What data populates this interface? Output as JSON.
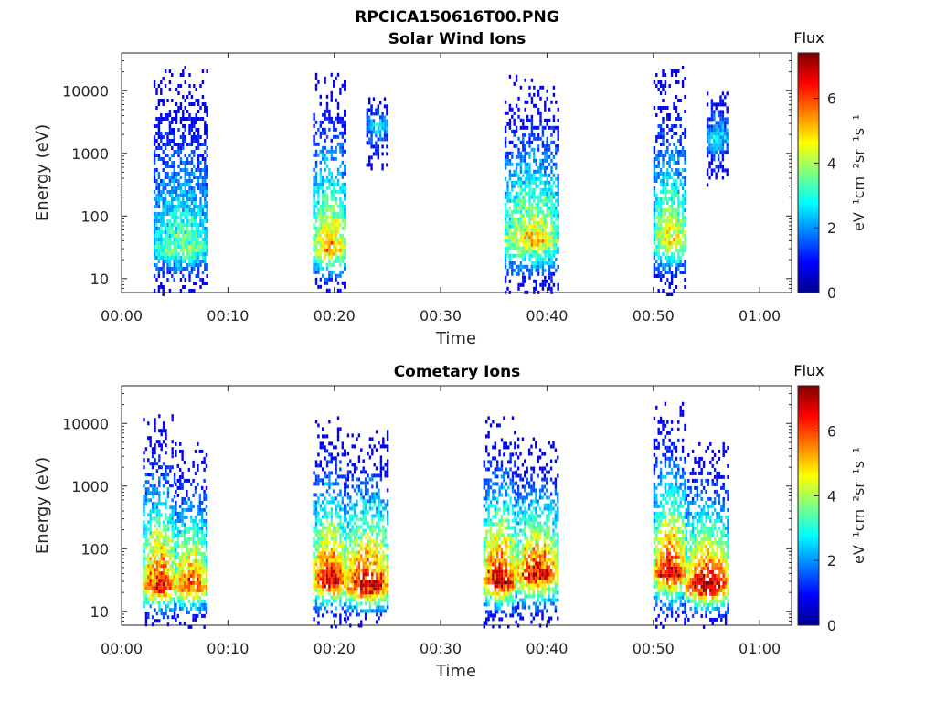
{
  "figure": {
    "title": "RPCICA150616T00.PNG"
  },
  "chart_data": [
    {
      "type": "heatmap",
      "title": "Solar Wind Ions",
      "xlabel": "Time",
      "ylabel": "Energy (eV)",
      "y_scale": "log",
      "ylim": [
        6,
        40000
      ],
      "xlim_minutes": [
        0,
        63
      ],
      "x_ticks": [
        "00:00",
        "00:10",
        "00:20",
        "00:30",
        "00:40",
        "00:50",
        "01:00"
      ],
      "y_ticks": [
        "10",
        "100",
        "1000",
        "10000"
      ],
      "colorbar": {
        "title": "Flux",
        "label": "eV⁻¹cm⁻²sr⁻¹s⁻¹",
        "range": [
          0,
          7.4
        ],
        "ticks": [
          "0",
          "2",
          "4",
          "6"
        ],
        "colormap": "jet"
      },
      "bursts": [
        {
          "start": "00:03",
          "end": "00:08",
          "peak_energy_eV": 30,
          "min_energy_eV": 6,
          "max_energy_eV": 25000,
          "peak_flux": 3.3
        },
        {
          "start": "00:18",
          "end": "00:21",
          "peak_energy_eV": 30,
          "min_energy_eV": 6,
          "max_energy_eV": 22000,
          "peak_flux": 5.0
        },
        {
          "start": "00:23",
          "end": "00:25",
          "peak_energy_eV": 3000,
          "min_energy_eV": 600,
          "max_energy_eV": 9000,
          "peak_flux": 2.2
        },
        {
          "start": "00:36",
          "end": "00:41",
          "peak_energy_eV": 40,
          "min_energy_eV": 6,
          "max_energy_eV": 18000,
          "peak_flux": 4.6
        },
        {
          "start": "00:50",
          "end": "00:53",
          "peak_energy_eV": 40,
          "min_energy_eV": 6,
          "max_energy_eV": 25000,
          "peak_flux": 4.4
        },
        {
          "start": "00:55",
          "end": "00:57",
          "peak_energy_eV": 2000,
          "min_energy_eV": 300,
          "max_energy_eV": 11000,
          "peak_flux": 2.2
        }
      ]
    },
    {
      "type": "heatmap",
      "title": "Cometary Ions",
      "xlabel": "Time",
      "ylabel": "Energy (eV)",
      "y_scale": "log",
      "ylim": [
        6,
        40000
      ],
      "xlim_minutes": [
        0,
        63
      ],
      "x_ticks": [
        "00:00",
        "00:10",
        "00:20",
        "00:30",
        "00:40",
        "00:50",
        "01:00"
      ],
      "y_ticks": [
        "10",
        "100",
        "1000",
        "10000"
      ],
      "colorbar": {
        "title": "Flux",
        "label": "eV⁻¹cm⁻²sr⁻¹s⁻¹",
        "range": [
          0,
          7.4
        ],
        "ticks": [
          "0",
          "2",
          "4",
          "6"
        ],
        "colormap": "jet"
      },
      "bursts": [
        {
          "start": "00:02",
          "end": "00:05",
          "peak_energy_eV": 25,
          "min_energy_eV": 6,
          "max_energy_eV": 14000,
          "peak_flux": 6.4
        },
        {
          "start": "00:05",
          "end": "00:08",
          "peak_energy_eV": 25,
          "min_energy_eV": 6,
          "max_energy_eV": 5000,
          "peak_flux": 6.0
        },
        {
          "start": "00:18",
          "end": "00:21",
          "peak_energy_eV": 30,
          "min_energy_eV": 6,
          "max_energy_eV": 13000,
          "peak_flux": 6.6
        },
        {
          "start": "00:21",
          "end": "00:25",
          "peak_energy_eV": 25,
          "min_energy_eV": 6,
          "max_energy_eV": 9000,
          "peak_flux": 6.8
        },
        {
          "start": "00:34",
          "end": "00:37",
          "peak_energy_eV": 30,
          "min_energy_eV": 6,
          "max_energy_eV": 13000,
          "peak_flux": 7.0
        },
        {
          "start": "00:37",
          "end": "00:41",
          "peak_energy_eV": 40,
          "min_energy_eV": 6,
          "max_energy_eV": 6000,
          "peak_flux": 6.6
        },
        {
          "start": "00:50",
          "end": "00:53",
          "peak_energy_eV": 40,
          "min_energy_eV": 6,
          "max_energy_eV": 22000,
          "peak_flux": 6.6
        },
        {
          "start": "00:53",
          "end": "00:57",
          "peak_energy_eV": 25,
          "min_energy_eV": 6,
          "max_energy_eV": 5000,
          "peak_flux": 7.0
        }
      ]
    }
  ]
}
